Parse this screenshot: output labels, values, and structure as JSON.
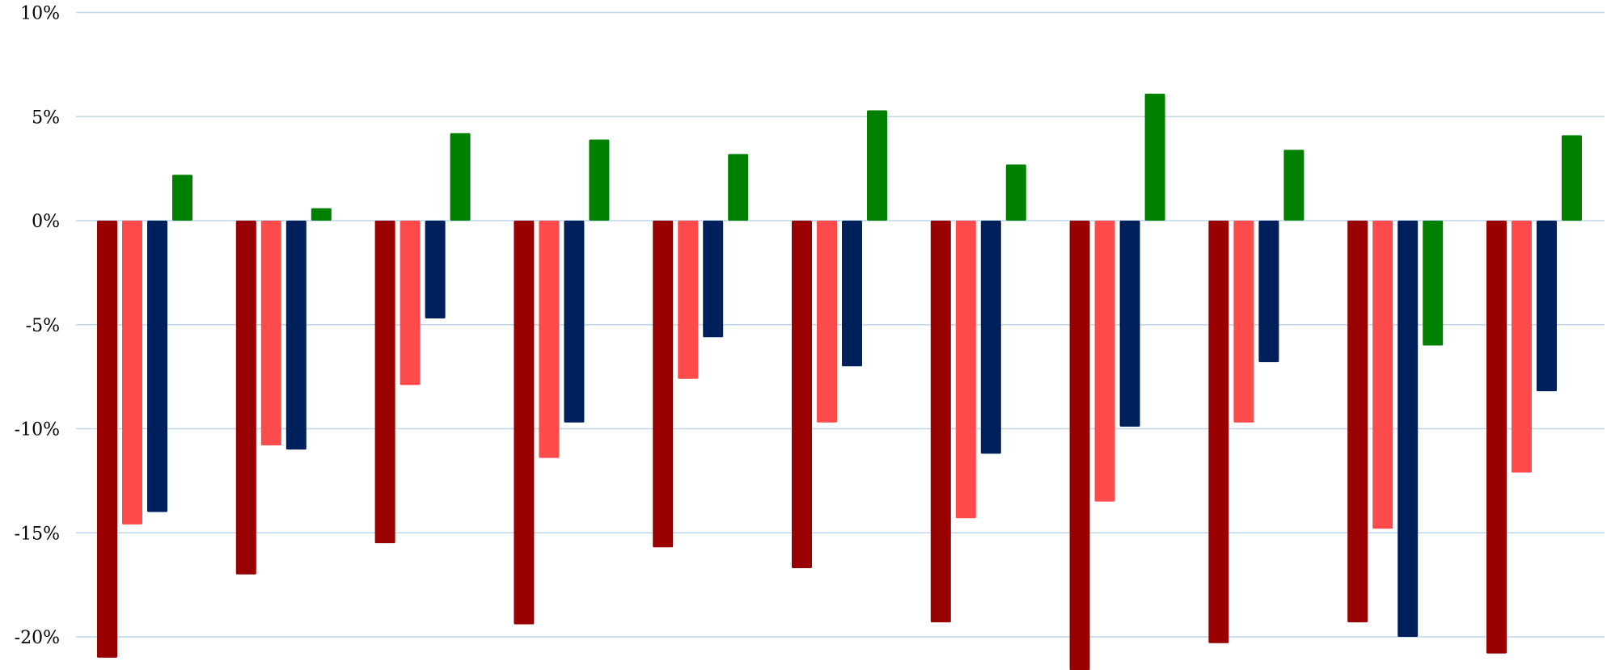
{
  "chart_data": {
    "type": "bar",
    "title": "",
    "xlabel": "",
    "ylabel": "",
    "ylim": [
      -22,
      10
    ],
    "yticks": [
      {
        "value": 10,
        "label": "10%"
      },
      {
        "value": 5,
        "label": "5%"
      },
      {
        "value": 0,
        "label": "0%"
      },
      {
        "value": -5,
        "label": "-5%"
      },
      {
        "value": -10,
        "label": "-10%"
      },
      {
        "value": -15,
        "label": "-15%"
      },
      {
        "value": -20,
        "label": "-20%"
      }
    ],
    "grid": true,
    "legend": "none",
    "categories": [
      "",
      "",
      "",
      "",
      "",
      "",
      "",
      "",
      "",
      "",
      ""
    ],
    "series": [
      {
        "color": "#990000",
        "values": [
          -21.0,
          -17.0,
          -15.5,
          -19.4,
          -15.7,
          -16.7,
          -19.3,
          -21.6,
          -20.3,
          -19.3,
          -20.8
        ]
      },
      {
        "color": "#ff4b4b",
        "values": [
          -14.6,
          -10.8,
          -7.9,
          -11.4,
          -7.6,
          -9.7,
          -14.3,
          -13.5,
          -9.7,
          -14.8,
          -12.1
        ]
      },
      {
        "color": "#00205c",
        "values": [
          -14.0,
          -11.0,
          -4.7,
          -9.7,
          -5.6,
          -7.0,
          -11.2,
          -9.9,
          -6.8,
          -20.0,
          -8.2
        ]
      },
      {
        "color": "#008000",
        "values": [
          2.2,
          0.6,
          4.2,
          3.9,
          3.2,
          5.3,
          2.7,
          6.1,
          3.4,
          -6.0,
          4.1
        ]
      }
    ]
  }
}
